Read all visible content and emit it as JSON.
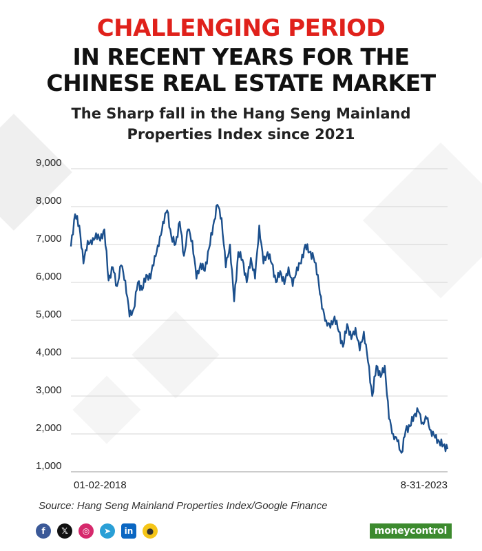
{
  "header": {
    "line1": "CHALLENGING PERIOD",
    "line2": "IN RECENT YEARS FOR THE",
    "line3": "CHINESE REAL ESTATE MARKET",
    "accent_color": "#e0211b"
  },
  "subtitle": {
    "line1": "The Sharp fall in the Hang Seng Mainland",
    "line2": "Properties Index since 2021"
  },
  "chart_data": {
    "type": "line",
    "title": "The Sharp fall in the Hang Seng Mainland Properties Index since 2021",
    "xlabel": "",
    "ylabel": "",
    "x_start_label": "01-02-2018",
    "x_end_label": "8-31-2023",
    "ylim": [
      1000,
      9000
    ],
    "yticks": [
      "9,000",
      "8,000",
      "7,000",
      "6,000",
      "5,000",
      "4,000",
      "3,000",
      "2,000",
      "1,000"
    ],
    "grid": true,
    "line_color": "#1b4f8c",
    "series": [
      {
        "name": "",
        "values": [
          6950,
          7800,
          7500,
          6500,
          7100,
          7000,
          7300,
          7100,
          7400,
          6050,
          6400,
          5900,
          6450,
          6050,
          5100,
          5300,
          6000,
          5800,
          6200,
          6100,
          6700,
          6950,
          7600,
          7900,
          7200,
          7000,
          7600,
          6700,
          7400,
          7100,
          6100,
          6500,
          6300,
          6900,
          7500,
          8050,
          7700,
          6400,
          7000,
          5500,
          6800,
          6600,
          6000,
          6650,
          6100,
          7500,
          6500,
          6800,
          6500,
          6000,
          6300,
          5950,
          6400,
          5900,
          6400,
          6500,
          7000,
          6800,
          6650,
          6200,
          5300,
          5000,
          4800,
          5100,
          4700,
          4300,
          4900,
          4500,
          4800,
          4200,
          4700,
          3900,
          3000,
          3800,
          3500,
          3800,
          2400,
          2000,
          1800,
          1500,
          2100,
          2200,
          2500,
          2600,
          2300,
          2400,
          2100,
          1900,
          1800,
          1700,
          1600
        ]
      }
    ]
  },
  "source": "Source: Hang Seng Mainland Properties Index/Google Finance",
  "footer": {
    "social_icons": [
      "facebook-icon",
      "x-icon",
      "instagram-icon",
      "telegram-icon",
      "linkedin-icon",
      "koo-icon"
    ],
    "brand": "moneycontrol"
  }
}
